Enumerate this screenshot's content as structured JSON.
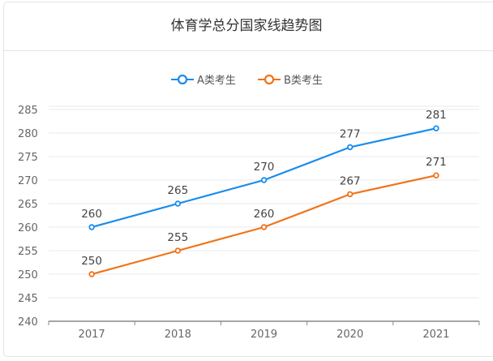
{
  "chart_data": {
    "type": "line",
    "title": "体育学总分国家线趋势图",
    "categories": [
      "2017",
      "2018",
      "2019",
      "2020",
      "2021"
    ],
    "series": [
      {
        "name": "A类考生",
        "values": [
          260,
          265,
          270,
          277,
          281
        ],
        "color": "#1a8ceb"
      },
      {
        "name": "B类考生",
        "values": [
          250,
          255,
          260,
          267,
          271
        ],
        "color": "#f07318"
      }
    ],
    "ylim": [
      240,
      285
    ],
    "yticks": [
      240,
      245,
      250,
      255,
      260,
      265,
      270,
      275,
      280,
      285
    ],
    "grid": true,
    "legend": "top-center",
    "data_labels": true
  }
}
